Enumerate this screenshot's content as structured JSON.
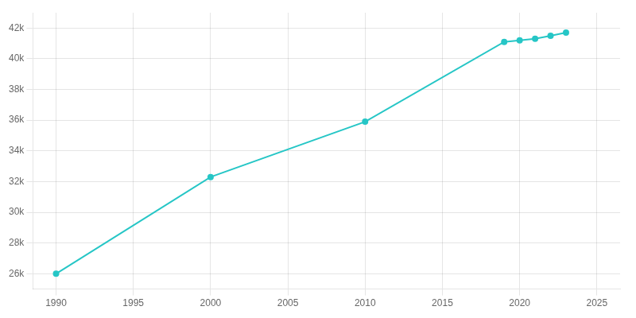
{
  "chart_data": {
    "type": "line",
    "x": [
      1990,
      2000,
      2010,
      2019,
      2020,
      2021,
      2022,
      2023
    ],
    "values": [
      26000,
      32300,
      35900,
      41100,
      41200,
      41300,
      41500,
      41700
    ],
    "color": "#26c6c6",
    "marker": "circle",
    "xlim": [
      1988.5,
      2026.5
    ],
    "ylim": [
      25000,
      43000
    ],
    "xticks": [
      1990,
      1995,
      2000,
      2005,
      2010,
      2015,
      2020,
      2025
    ],
    "yticks": [
      {
        "value": 26000,
        "label": "26k"
      },
      {
        "value": 28000,
        "label": "28k"
      },
      {
        "value": 30000,
        "label": "30k"
      },
      {
        "value": 32000,
        "label": "32k"
      },
      {
        "value": 34000,
        "label": "34k"
      },
      {
        "value": 36000,
        "label": "36k"
      },
      {
        "value": 38000,
        "label": "38k"
      },
      {
        "value": 40000,
        "label": "40k"
      },
      {
        "value": 42000,
        "label": "42k"
      }
    ],
    "grid": true
  }
}
